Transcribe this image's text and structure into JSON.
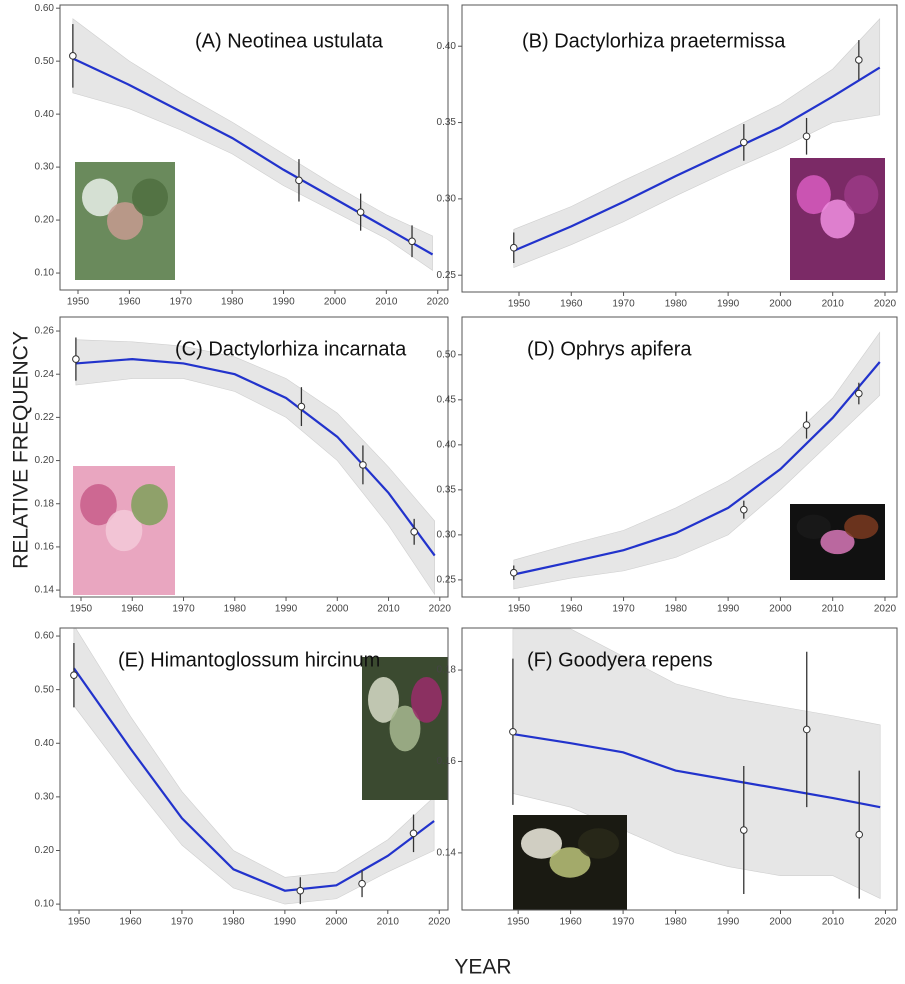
{
  "ylabel": "RELATIVE FREQUENCY",
  "xlabel": "YEAR",
  "chart_data": [
    {
      "type": "line",
      "title": "(A) Neotinea ustulata",
      "xlim": [
        1946.5,
        2022
      ],
      "xticks": [
        1950,
        1960,
        1970,
        1980,
        1990,
        2000,
        2010,
        2020
      ],
      "ylim": [
        0.068,
        0.606
      ],
      "yticks": [
        {
          "value": 0.6,
          "label": "0.60"
        },
        {
          "value": 0.5,
          "label": "0.50"
        },
        {
          "value": 0.4,
          "label": "0.40"
        },
        {
          "value": 0.3,
          "label": "0.30"
        },
        {
          "value": 0.2,
          "label": "0.20"
        },
        {
          "value": 0.1,
          "label": "0.10"
        }
      ],
      "fit": {
        "color": "#2233cc",
        "band_color": "#e6e6e6",
        "x": [
          1949,
          1960,
          1970,
          1980,
          1990,
          2000,
          2010,
          2019
        ],
        "values": [
          0.505,
          0.455,
          0.405,
          0.355,
          0.295,
          0.24,
          0.185,
          0.135
        ],
        "lower": [
          0.44,
          0.41,
          0.37,
          0.325,
          0.265,
          0.215,
          0.165,
          0.105
        ],
        "upper": [
          0.58,
          0.5,
          0.44,
          0.385,
          0.325,
          0.265,
          0.21,
          0.17
        ]
      },
      "points": {
        "x": [
          1949,
          1993,
          2005,
          2015
        ],
        "values": [
          0.51,
          0.275,
          0.215,
          0.16
        ],
        "errors": [
          0.06,
          0.04,
          0.035,
          0.03
        ]
      }
    },
    {
      "type": "line",
      "title": "(B) Dactylorhiza praetermissa",
      "xlim": [
        1939.1,
        2022.3
      ],
      "xticks": [
        1950,
        1960,
        1970,
        1980,
        1990,
        2000,
        2010,
        2020
      ],
      "ylim": [
        0.239,
        0.427
      ],
      "yticks": [
        {
          "value": 0.4,
          "label": "0.40"
        },
        0.35,
        {
          "value": 0.3,
          "label": "0.30"
        },
        0.25
      ],
      "fit": {
        "color": "#2233cc",
        "band_color": "#e6e6e6",
        "x": [
          1949,
          1960,
          1970,
          1980,
          1990,
          2000,
          2010,
          2019
        ],
        "values": [
          0.266,
          0.282,
          0.298,
          0.315,
          0.331,
          0.347,
          0.367,
          0.386
        ],
        "lower": [
          0.255,
          0.27,
          0.285,
          0.302,
          0.318,
          0.333,
          0.35,
          0.355
        ],
        "upper": [
          0.28,
          0.295,
          0.312,
          0.328,
          0.345,
          0.362,
          0.385,
          0.418
        ]
      },
      "points": {
        "x": [
          1949,
          1993,
          2005,
          2015
        ],
        "values": [
          0.268,
          0.337,
          0.341,
          0.391
        ],
        "errors": [
          0.01,
          0.012,
          0.012,
          0.013
        ]
      }
    },
    {
      "type": "line",
      "title": "(C) Dactylorhiza incarnata",
      "xlim": [
        1945.9,
        2021.6
      ],
      "xticks": [
        1950,
        1960,
        1970,
        1980,
        1990,
        2000,
        2010,
        2020
      ],
      "ylim": [
        0.1368,
        0.2665
      ],
      "yticks": [
        0.26,
        0.24,
        0.22,
        {
          "value": 0.2,
          "label": "0.20"
        },
        0.18,
        0.16,
        0.14
      ],
      "fit": {
        "color": "#2233cc",
        "band_color": "#e6e6e6",
        "x": [
          1949,
          1960,
          1970,
          1980,
          1990,
          2000,
          2010,
          2019
        ],
        "values": [
          0.245,
          0.247,
          0.245,
          0.24,
          0.229,
          0.211,
          0.185,
          0.156
        ],
        "lower": [
          0.235,
          0.238,
          0.238,
          0.232,
          0.22,
          0.2,
          0.17,
          0.138
        ],
        "upper": [
          0.256,
          0.255,
          0.253,
          0.248,
          0.238,
          0.222,
          0.197,
          0.172
        ]
      },
      "points": {
        "x": [
          1949,
          1993,
          2005,
          2015
        ],
        "values": [
          0.247,
          0.225,
          0.198,
          0.167
        ],
        "errors": [
          0.01,
          0.009,
          0.009,
          0.006
        ]
      }
    },
    {
      "type": "line",
      "title": "(D) Ophrys apifera",
      "xlim": [
        1939.1,
        2022.3
      ],
      "xticks": [
        1950,
        1960,
        1970,
        1980,
        1990,
        2000,
        2010,
        2020
      ],
      "ylim": [
        0.231,
        0.542
      ],
      "yticks": [
        {
          "value": 0.5,
          "label": "0.50"
        },
        0.45,
        {
          "value": 0.4,
          "label": "0.40"
        },
        0.35,
        {
          "value": 0.3,
          "label": "0.30"
        },
        0.25
      ],
      "fit": {
        "color": "#2233cc",
        "band_color": "#e6e6e6",
        "x": [
          1949,
          1960,
          1970,
          1980,
          1990,
          2000,
          2010,
          2019
        ],
        "values": [
          0.256,
          0.27,
          0.283,
          0.302,
          0.33,
          0.373,
          0.43,
          0.492
        ],
        "lower": [
          0.24,
          0.252,
          0.26,
          0.275,
          0.3,
          0.35,
          0.405,
          0.455
        ],
        "upper": [
          0.272,
          0.29,
          0.305,
          0.33,
          0.36,
          0.397,
          0.452,
          0.525
        ]
      },
      "points": {
        "x": [
          1949,
          1993,
          2005,
          2015
        ],
        "values": [
          0.258,
          0.328,
          0.422,
          0.457
        ],
        "errors": [
          0.008,
          0.01,
          0.015,
          0.012
        ]
      }
    },
    {
      "type": "line",
      "title": "(E) Himantoglossum hircinum",
      "xlim": [
        1946.3,
        2021.7
      ],
      "xticks": [
        1950,
        1960,
        1970,
        1980,
        1990,
        2000,
        2010,
        2020
      ],
      "ylim": [
        0.089,
        0.615
      ],
      "yticks": [
        {
          "value": 0.6,
          "label": "0.60"
        },
        {
          "value": 0.5,
          "label": "0.50"
        },
        {
          "value": 0.4,
          "label": "0.40"
        },
        {
          "value": 0.3,
          "label": "0.30"
        },
        {
          "value": 0.2,
          "label": "0.20"
        },
        {
          "value": 0.1,
          "label": "0.10"
        }
      ],
      "fit": {
        "color": "#2233cc",
        "band_color": "#e6e6e6",
        "x": [
          1949,
          1960,
          1970,
          1980,
          1990,
          2000,
          2010,
          2019
        ],
        "values": [
          0.54,
          0.39,
          0.26,
          0.165,
          0.125,
          0.135,
          0.19,
          0.255
        ],
        "lower": [
          0.47,
          0.33,
          0.21,
          0.13,
          0.1,
          0.11,
          0.16,
          0.2
        ],
        "upper": [
          0.62,
          0.45,
          0.31,
          0.2,
          0.15,
          0.16,
          0.22,
          0.3
        ]
      },
      "points": {
        "x": [
          1949,
          1993,
          2005,
          2015
        ],
        "values": [
          0.527,
          0.125,
          0.138,
          0.232
        ],
        "errors": [
          0.06,
          0.025,
          0.025,
          0.035
        ]
      }
    },
    {
      "type": "line",
      "title": "(F) Goodyera repens",
      "xlim": [
        1939.3,
        2022.2
      ],
      "xticks": [
        1950,
        1960,
        1970,
        1980,
        1990,
        2000,
        2010,
        2020
      ],
      "ylim": [
        0.1275,
        0.1892
      ],
      "yticks": [
        0.18,
        0.16,
        0.14
      ],
      "fit": {
        "color": "#2233cc",
        "band_color": "#e6e6e6",
        "x": [
          1949,
          1960,
          1970,
          1980,
          1990,
          2000,
          2010,
          2019
        ],
        "values": [
          0.166,
          0.164,
          0.162,
          0.158,
          0.156,
          0.154,
          0.152,
          0.15
        ],
        "lower": [
          0.153,
          0.15,
          0.145,
          0.14,
          0.137,
          0.135,
          0.135,
          0.13
        ],
        "upper": [
          0.189,
          0.189,
          0.183,
          0.177,
          0.174,
          0.172,
          0.17,
          0.168
        ]
      },
      "points": {
        "x": [
          1949,
          1993,
          2005,
          2015
        ],
        "values": [
          0.1665,
          0.145,
          0.167,
          0.144
        ],
        "errors": [
          0.016,
          0.014,
          0.017,
          0.014
        ]
      }
    }
  ]
}
